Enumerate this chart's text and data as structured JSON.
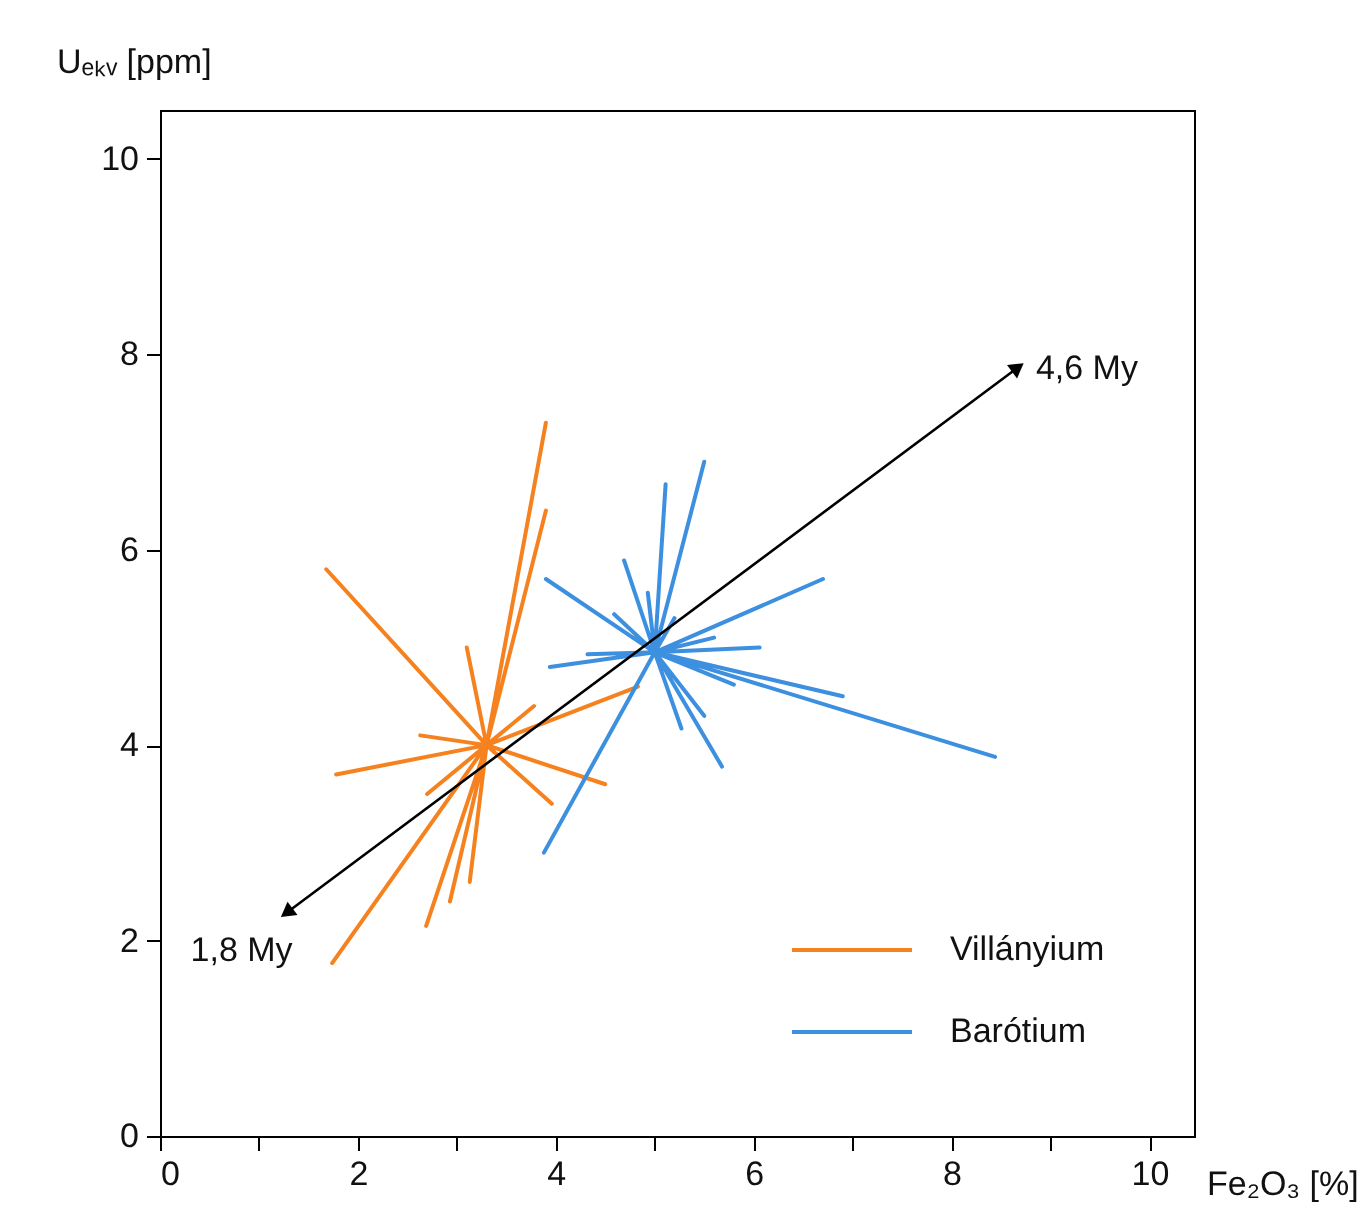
{
  "chart_data": {
    "type": "line",
    "xlabel": "Fe₂O₃ [%]",
    "ylabel": "Uₑₖᵥ [ppm]",
    "xlim": [
      0,
      10.45
    ],
    "ylim": [
      0,
      10.5
    ],
    "xticks": [
      0,
      {
        "value": 1,
        "label": null
      },
      2,
      {
        "value": 3,
        "label": null
      },
      4,
      {
        "value": 5,
        "label": null
      },
      6,
      {
        "value": 7,
        "label": null
      },
      8,
      {
        "value": 9,
        "label": null
      },
      10
    ],
    "yticks": [
      0,
      2,
      4,
      6,
      8,
      10
    ],
    "grid": false,
    "legend": "bottom right",
    "line_style": "solid",
    "series": [
      {
        "name": "Villányium",
        "color": "#f5821f",
        "x": [
          3.3,
          3.9,
          3.3,
          3.9,
          3.3,
          1.68,
          3.3,
          3.1,
          3.3,
          3.78,
          3.3,
          4.83,
          3.3,
          2.63,
          3.3,
          1.78,
          3.3,
          4.5,
          3.3,
          3.96,
          3.3,
          2.7,
          3.3,
          3.13,
          3.3,
          2.93,
          3.3,
          2.69,
          3.3,
          1.74
        ],
        "values": [
          4.0,
          7.3,
          4.0,
          6.4,
          4.0,
          5.8,
          4.0,
          5.0,
          4.0,
          4.4,
          4.0,
          4.6,
          4.0,
          4.1,
          4.0,
          3.7,
          4.0,
          3.6,
          4.0,
          3.4,
          4.0,
          3.5,
          4.0,
          2.6,
          4.0,
          2.4,
          4.0,
          2.15,
          4.0,
          1.77
        ]
      },
      {
        "name": "Barótium",
        "color": "#3d8fe0",
        "x": [
          5.0,
          5.5,
          5.0,
          5.11,
          5.0,
          4.69,
          5.0,
          4.93,
          5.0,
          3.9,
          5.0,
          4.59,
          5.0,
          6.7,
          5.0,
          3.94,
          5.0,
          6.06,
          5.0,
          4.32,
          5.0,
          5.6,
          5.0,
          6.9,
          5.0,
          8.44,
          5.0,
          5.8,
          5.0,
          5.5,
          5.0,
          5.27,
          5.0,
          5.68,
          5.0,
          3.88,
          5.0,
          5.2
        ],
        "values": [
          4.95,
          6.9,
          4.95,
          6.67,
          4.95,
          5.89,
          4.95,
          5.56,
          4.95,
          5.7,
          4.95,
          5.34,
          4.95,
          5.7,
          4.95,
          4.8,
          4.95,
          5.0,
          4.95,
          4.93,
          4.95,
          5.1,
          4.95,
          4.5,
          4.95,
          3.88,
          4.95,
          4.62,
          4.95,
          4.3,
          4.95,
          4.17,
          4.95,
          3.78,
          4.95,
          2.9,
          4.95,
          5.3
        ]
      },
      {
        "color": "#000000",
        "marker": "triangle",
        "x": [
          1.3,
          8.65
        ],
        "values": [
          2.3,
          7.85
        ]
      }
    ],
    "annotations": [
      {
        "text": "1,8 My",
        "x": 1.3,
        "y": 2.3
      },
      {
        "text": "4,6 My",
        "x": 8.65,
        "y": 7.85
      }
    ]
  }
}
